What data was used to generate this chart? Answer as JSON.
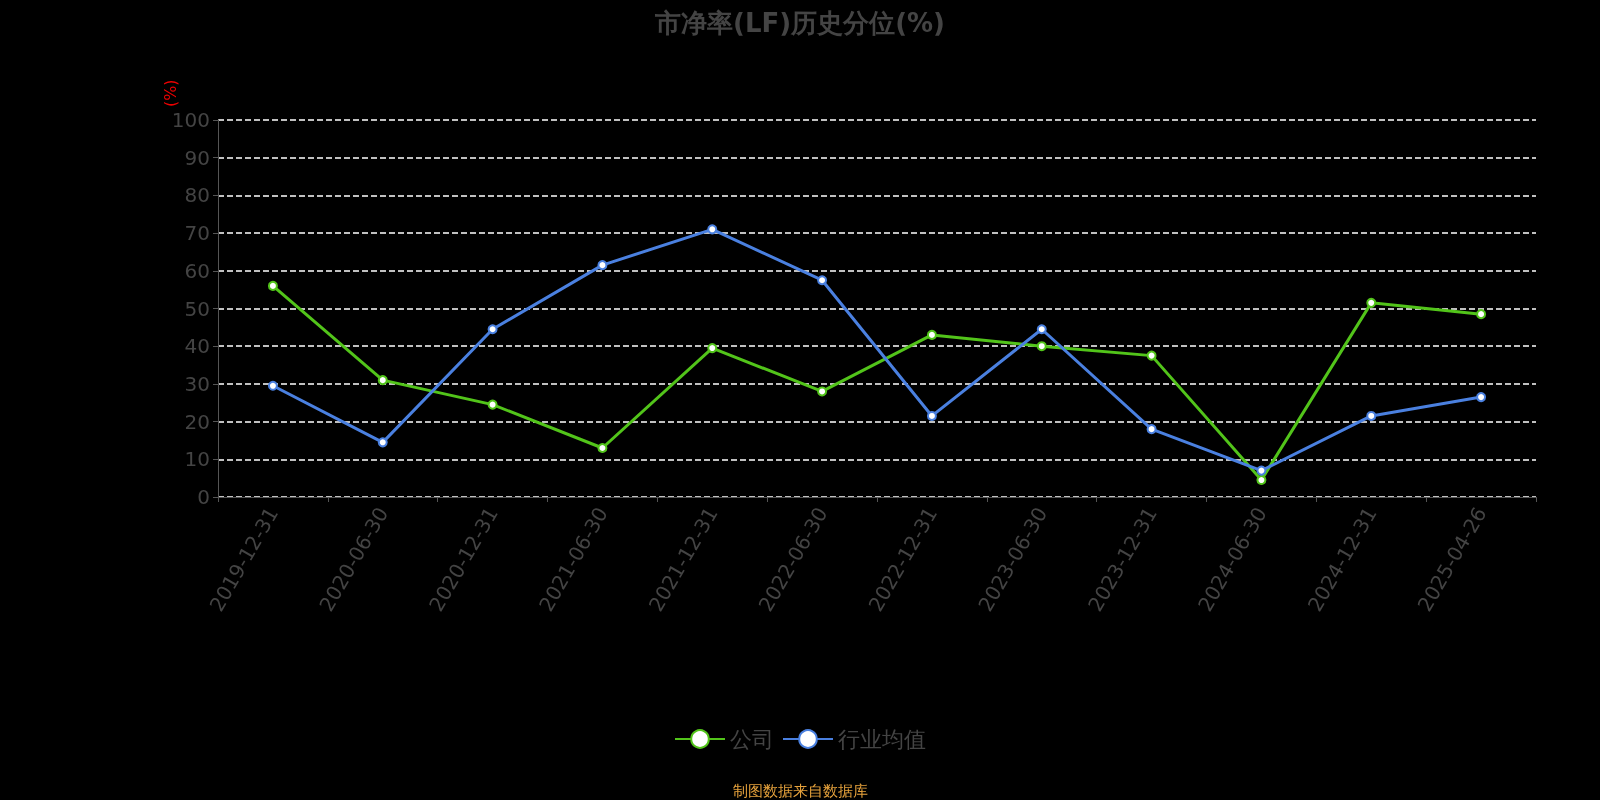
{
  "chart_data": {
    "type": "line",
    "title": "市净率(LF)历史分位(%)",
    "ylabel": "(%)",
    "categories": [
      "2019-12-31",
      "2020-06-30",
      "2020-12-31",
      "2021-06-30",
      "2021-12-31",
      "2022-06-30",
      "2022-12-31",
      "2023-06-30",
      "2023-12-31",
      "2024-06-30",
      "2024-12-31",
      "2025-04-26"
    ],
    "series": [
      {
        "name": "公司",
        "color": "#52c41a",
        "values": [
          56,
          31,
          24.5,
          13,
          39.5,
          28,
          43,
          40,
          37.5,
          4.5,
          51.5,
          48.5
        ]
      },
      {
        "name": "行业均值",
        "color": "#4a80e0",
        "values": [
          29.5,
          14.5,
          44.5,
          61.5,
          71,
          57.5,
          21.5,
          44.5,
          18,
          7,
          21.5,
          26.5
        ]
      }
    ],
    "ylim": [
      0,
      100
    ],
    "yticks": [
      0,
      10,
      20,
      30,
      40,
      50,
      60,
      70,
      80,
      90,
      100
    ],
    "grid": "y",
    "legend": "bottom",
    "marker": "circle",
    "line_style": "solid",
    "annotations": [
      "制图数据来自数据库"
    ]
  }
}
